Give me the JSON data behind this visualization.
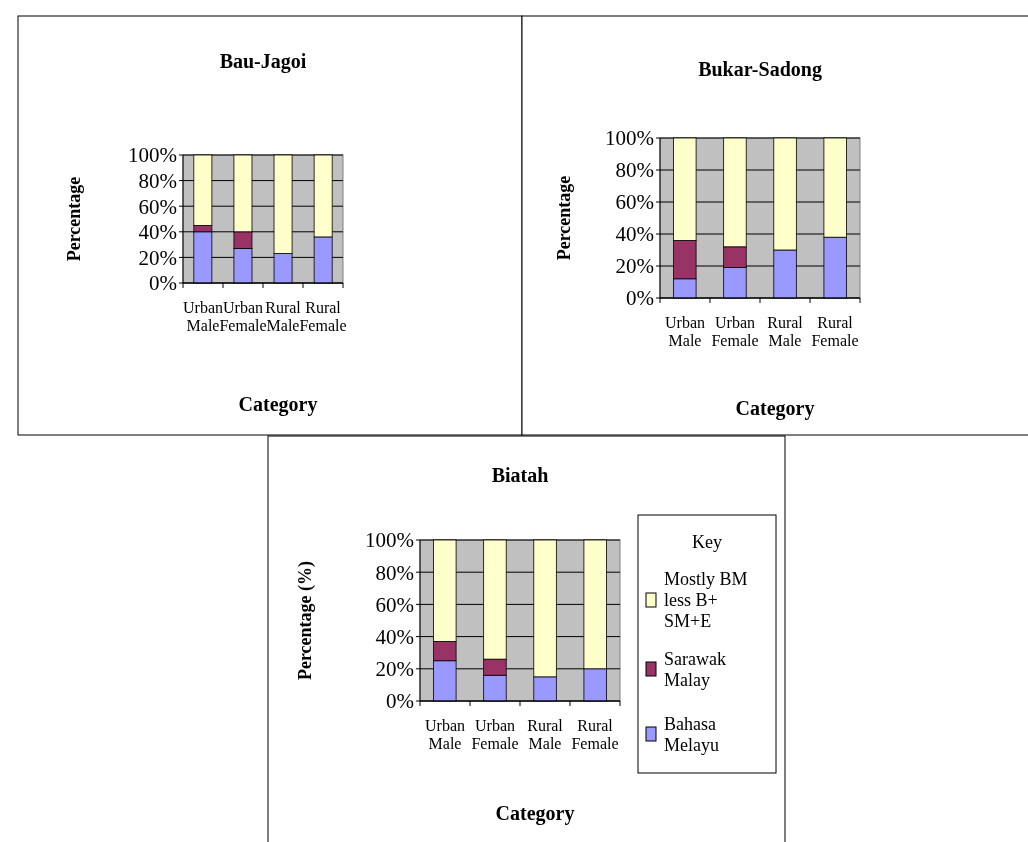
{
  "chart_data": [
    {
      "type": "bar",
      "title": "Bau-Jagoi",
      "xlabel": "Category",
      "ylabel": "Percentage",
      "categories": [
        "Urban Male",
        "Urban Female",
        "Rural Male",
        "Rural Female"
      ],
      "stacked": true,
      "ylim": [
        0,
        100
      ],
      "yticks": [
        {
          "value": 0,
          "label": "0%"
        },
        {
          "value": 20,
          "label": "20%"
        },
        {
          "value": 40,
          "label": "40%"
        },
        {
          "value": 60,
          "label": "60%"
        },
        {
          "value": 80,
          "label": "80%"
        },
        {
          "value": 100,
          "label": "100%"
        }
      ],
      "grid": "y",
      "legend": false,
      "series": [
        {
          "color": "#9999ff",
          "values": [
            40,
            27,
            23,
            36
          ]
        },
        {
          "color": "#993366",
          "values": [
            5,
            13,
            0,
            0
          ]
        },
        {
          "color": "#ffffcc",
          "values": [
            55,
            60,
            77,
            64
          ]
        }
      ]
    },
    {
      "type": "bar",
      "title": "Bukar-Sadong",
      "xlabel": "Category",
      "ylabel": "Percentage",
      "categories": [
        "Urban Male",
        "Urban Female",
        "Rural Male",
        "Rural Female"
      ],
      "stacked": true,
      "ylim": [
        0,
        100
      ],
      "yticks": [
        {
          "value": 0,
          "label": "0%"
        },
        {
          "value": 20,
          "label": "20%"
        },
        {
          "value": 40,
          "label": "40%"
        },
        {
          "value": 60,
          "label": "60%"
        },
        {
          "value": 80,
          "label": "80%"
        },
        {
          "value": 100,
          "label": "100%"
        }
      ],
      "grid": "y",
      "legend": false,
      "series": [
        {
          "color": "#9999ff",
          "values": [
            12,
            19,
            30,
            38
          ]
        },
        {
          "color": "#993366",
          "values": [
            24,
            13,
            0,
            0
          ]
        },
        {
          "color": "#ffffcc",
          "values": [
            64,
            68,
            70,
            62
          ]
        }
      ]
    },
    {
      "type": "bar",
      "title": "Biatah",
      "xlabel": "Category",
      "ylabel": "Percentage (%)",
      "legend_title": "Key",
      "categories": [
        "Urban Male",
        "Urban Female",
        "Rural Male",
        "Rural Female"
      ],
      "stacked": true,
      "ylim": [
        0,
        100
      ],
      "yticks": [
        {
          "value": 0,
          "label": "0%"
        },
        {
          "value": 20,
          "label": "20%"
        },
        {
          "value": 40,
          "label": "40%"
        },
        {
          "value": 60,
          "label": "60%"
        },
        {
          "value": 80,
          "label": "80%"
        },
        {
          "value": 100,
          "label": "100%"
        }
      ],
      "grid": "y",
      "legend": "right",
      "series": [
        {
          "name": "Bahasa Melayu",
          "color": "#9999ff",
          "values": [
            25,
            16,
            15,
            20
          ]
        },
        {
          "name": "Sarawak Malay",
          "color": "#993366",
          "values": [
            12,
            10,
            0,
            0
          ]
        },
        {
          "name": "Mostly BM less B+ SM+E",
          "color": "#ffffcc",
          "values": [
            63,
            74,
            85,
            80
          ]
        }
      ]
    }
  ]
}
